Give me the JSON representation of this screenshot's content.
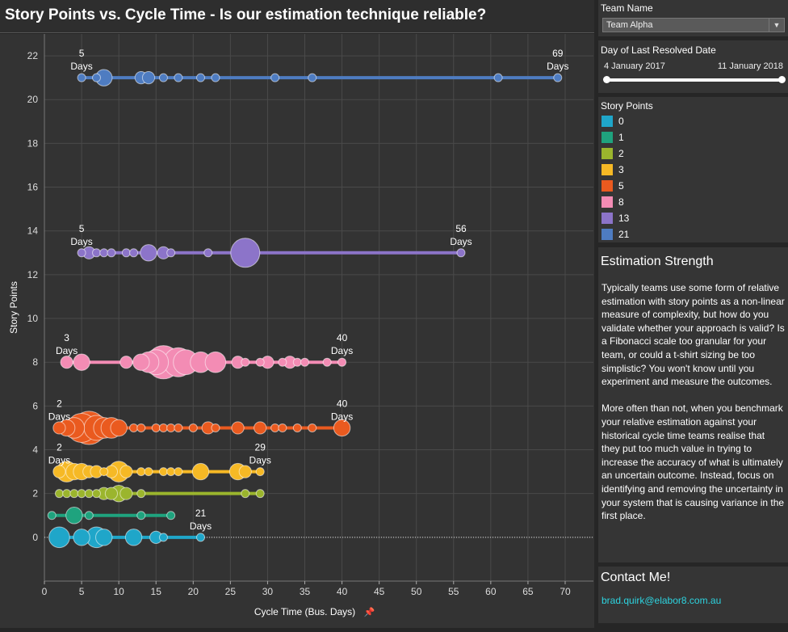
{
  "title": "Story Points vs. Cycle Time - Is our estimation technique reliable?",
  "filters": {
    "team_name_label": "Team Name",
    "team_name_value": "Team Alpha",
    "date_label": "Day of Last Resolved Date",
    "date_start": "4 January 2017",
    "date_end": "11 January 2018"
  },
  "legend": {
    "title": "Story Points",
    "items": [
      {
        "label": "0",
        "color": "#1fa6c9"
      },
      {
        "label": "1",
        "color": "#1fa37e"
      },
      {
        "label": "2",
        "color": "#9bb52d"
      },
      {
        "label": "3",
        "color": "#f6b925"
      },
      {
        "label": "5",
        "color": "#ea5a1f"
      },
      {
        "label": "8",
        "color": "#f38cb4"
      },
      {
        "label": "13",
        "color": "#8c74c9"
      },
      {
        "label": "21",
        "color": "#4e7cc1"
      }
    ]
  },
  "estimation": {
    "title": "Estimation Strength",
    "paragraph1": "Typically teams use some form of relative estimation with story points as a non-linear measure of complexity, but how do you validate whether your approach is valid? Is a Fibonacci scale too granular for your team, or could a t-shirt sizing be too simplistic? You won't know until you experiment and measure the outcomes.",
    "paragraph2": "More often than not, when you benchmark your relative estimation against your historical cycle time teams realise that they put too much value in trying to increase the accuracy of what is ultimately an uncertain outcome. Instead, focus on identifying and removing the uncertainty in your system that is causing variance in the first place."
  },
  "contact": {
    "title": "Contact Me!",
    "email": "brad.quirk@elabor8.com.au"
  },
  "chart_data": {
    "type": "scatter",
    "xlabel": "Cycle Time (Bus. Days)",
    "ylabel": "Story Points",
    "xlim": [
      0,
      70
    ],
    "ylim": [
      -2,
      23
    ],
    "xticks": [
      0,
      5,
      10,
      15,
      20,
      25,
      30,
      35,
      40,
      45,
      50,
      55,
      60,
      65,
      70
    ],
    "yticks": [
      0,
      2,
      4,
      6,
      8,
      10,
      12,
      14,
      16,
      18,
      20,
      22
    ],
    "grid": true,
    "reference_line": 0,
    "series": [
      {
        "name": "21",
        "y": 21,
        "color": "#4e7cc1",
        "min": 5,
        "max": 69,
        "min_label": "5\nDays",
        "max_label": "69\nDays",
        "points": [
          [
            5,
            1
          ],
          [
            8,
            3
          ],
          [
            7,
            1
          ],
          [
            13,
            2
          ],
          [
            14,
            2
          ],
          [
            16,
            1
          ],
          [
            18,
            1
          ],
          [
            21,
            1
          ],
          [
            23,
            1
          ],
          [
            31,
            1
          ],
          [
            36,
            1
          ],
          [
            61,
            1
          ],
          [
            69,
            1
          ]
        ]
      },
      {
        "name": "13",
        "y": 13,
        "color": "#8c74c9",
        "min": 5,
        "max": 56,
        "min_label": "5\nDays",
        "max_label": "56\nDays",
        "points": [
          [
            5,
            1
          ],
          [
            6,
            2
          ],
          [
            7,
            1
          ],
          [
            8,
            1
          ],
          [
            9,
            1
          ],
          [
            11,
            1
          ],
          [
            12,
            1
          ],
          [
            14,
            3
          ],
          [
            16,
            2
          ],
          [
            17,
            1
          ],
          [
            22,
            1
          ],
          [
            27,
            6
          ],
          [
            56,
            1
          ]
        ]
      },
      {
        "name": "8",
        "y": 8,
        "color": "#f38cb4",
        "min": 3,
        "max": 40,
        "min_label": "3\nDays",
        "max_label": "40\nDays",
        "points": [
          [
            3,
            2
          ],
          [
            5,
            3
          ],
          [
            11,
            2
          ],
          [
            13,
            3
          ],
          [
            14,
            4
          ],
          [
            15,
            5
          ],
          [
            16,
            7
          ],
          [
            18,
            6
          ],
          [
            19,
            5
          ],
          [
            21,
            4
          ],
          [
            23,
            4
          ],
          [
            26,
            2
          ],
          [
            27,
            1
          ],
          [
            29,
            1
          ],
          [
            30,
            2
          ],
          [
            32,
            1
          ],
          [
            33,
            2
          ],
          [
            34,
            1
          ],
          [
            35,
            1
          ],
          [
            38,
            1
          ],
          [
            40,
            1
          ]
        ]
      },
      {
        "name": "5",
        "y": 5,
        "color": "#ea5a1f",
        "min": 2,
        "max": 40,
        "min_label": "2\nDays",
        "max_label": "40\nDays",
        "points": [
          [
            2,
            2
          ],
          [
            3,
            3
          ],
          [
            4,
            4
          ],
          [
            5,
            6
          ],
          [
            6,
            7
          ],
          [
            7,
            5
          ],
          [
            8,
            4
          ],
          [
            9,
            4
          ],
          [
            10,
            3
          ],
          [
            12,
            1
          ],
          [
            13,
            1
          ],
          [
            15,
            1
          ],
          [
            16,
            1
          ],
          [
            17,
            1
          ],
          [
            18,
            1
          ],
          [
            20,
            1
          ],
          [
            22,
            2
          ],
          [
            23,
            1
          ],
          [
            26,
            2
          ],
          [
            29,
            2
          ],
          [
            31,
            1
          ],
          [
            32,
            1
          ],
          [
            34,
            1
          ],
          [
            36,
            1
          ],
          [
            40,
            3
          ]
        ]
      },
      {
        "name": "3",
        "y": 3,
        "color": "#f6b925",
        "min": 2,
        "max": 29,
        "min_label": "2\nDays",
        "max_label": "29\nDays",
        "points": [
          [
            2,
            2
          ],
          [
            3,
            4
          ],
          [
            4,
            3
          ],
          [
            5,
            3
          ],
          [
            6,
            2
          ],
          [
            7,
            2
          ],
          [
            8,
            1
          ],
          [
            9,
            2
          ],
          [
            10,
            4
          ],
          [
            11,
            2
          ],
          [
            13,
            1
          ],
          [
            14,
            1
          ],
          [
            16,
            1
          ],
          [
            17,
            1
          ],
          [
            18,
            1
          ],
          [
            21,
            3
          ],
          [
            26,
            3
          ],
          [
            27,
            2
          ],
          [
            29,
            1
          ]
        ]
      },
      {
        "name": "2",
        "y": 2,
        "color": "#9bb52d",
        "min": 2,
        "max": 29,
        "min_label": "",
        "max_label": "",
        "points": [
          [
            2,
            1
          ],
          [
            3,
            1
          ],
          [
            4,
            1
          ],
          [
            5,
            1
          ],
          [
            6,
            1
          ],
          [
            7,
            1
          ],
          [
            8,
            2
          ],
          [
            9,
            2
          ],
          [
            10,
            3
          ],
          [
            11,
            2
          ],
          [
            13,
            1
          ],
          [
            27,
            1
          ],
          [
            29,
            1
          ]
        ]
      },
      {
        "name": "1",
        "y": 1,
        "color": "#1fa37e",
        "min": 1,
        "max": 17,
        "min_label": "",
        "max_label": "",
        "points": [
          [
            1,
            1
          ],
          [
            4,
            3
          ],
          [
            6,
            1
          ],
          [
            13,
            1
          ],
          [
            17,
            1
          ]
        ]
      },
      {
        "name": "0",
        "y": 0,
        "color": "#1fa6c9",
        "min": 2,
        "max": 21,
        "min_label": "",
        "max_label": "21\nDays",
        "points": [
          [
            2,
            4
          ],
          [
            5,
            3
          ],
          [
            7,
            4
          ],
          [
            8,
            3
          ],
          [
            12,
            3
          ],
          [
            15,
            2
          ],
          [
            16,
            1
          ],
          [
            21,
            1
          ]
        ]
      }
    ]
  }
}
